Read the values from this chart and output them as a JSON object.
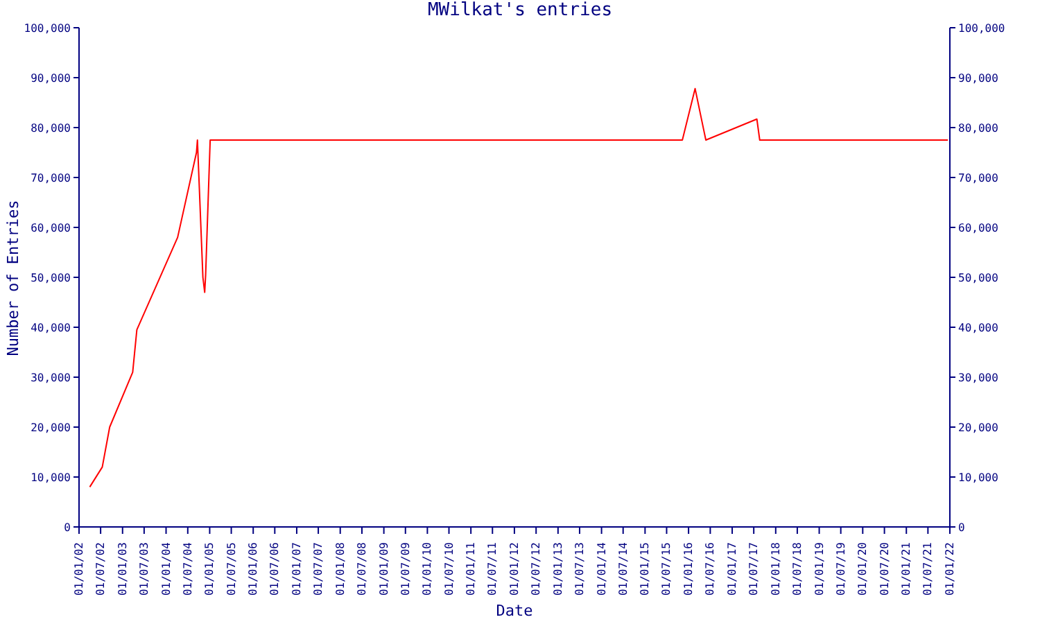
{
  "chart_data": {
    "type": "line",
    "title": "MWilkat's entries",
    "xlabel": "Date",
    "ylabel": "Number of Entries",
    "x": [
      "2002-04-01",
      "2002-07-15",
      "2002-09-15",
      "2003-03-27",
      "2003-05-01",
      "2004-04-07",
      "2004-09-12",
      "2004-09-20",
      "2004-11-05",
      "2004-11-20",
      "2004-11-28",
      "2005-01-05",
      "2015-11-10",
      "2016-02-25",
      "2016-05-25",
      "2017-07-27",
      "2017-08-20",
      "2021-12-15"
    ],
    "series": [
      {
        "color": "#ff0000",
        "values": [
          8000,
          12000,
          20000,
          31000,
          39500,
          58000,
          75000,
          77500,
          50000,
          47000,
          50500,
          77500,
          77500,
          87800,
          77500,
          81700,
          77500,
          77500
        ]
      }
    ],
    "xlim": [
      "2002-01-01",
      "2022-01-01"
    ],
    "xticks": [
      {
        "value": "2002-01-01",
        "label": "01/01/02"
      },
      {
        "value": "2002-07-01",
        "label": "01/07/02"
      },
      {
        "value": "2003-01-01",
        "label": "01/01/03"
      },
      {
        "value": "2003-07-01",
        "label": "01/07/03"
      },
      {
        "value": "2004-01-01",
        "label": "01/01/04"
      },
      {
        "value": "2004-07-01",
        "label": "01/07/04"
      },
      {
        "value": "2005-01-01",
        "label": "01/01/05"
      },
      {
        "value": "2005-07-01",
        "label": "01/07/05"
      },
      {
        "value": "2006-01-01",
        "label": "01/01/06"
      },
      {
        "value": "2006-07-01",
        "label": "01/07/06"
      },
      {
        "value": "2007-01-01",
        "label": "01/01/07"
      },
      {
        "value": "2007-07-01",
        "label": "01/07/07"
      },
      {
        "value": "2008-01-01",
        "label": "01/01/08"
      },
      {
        "value": "2008-07-01",
        "label": "01/07/08"
      },
      {
        "value": "2009-01-01",
        "label": "01/01/09"
      },
      {
        "value": "2009-07-01",
        "label": "01/07/09"
      },
      {
        "value": "2010-01-01",
        "label": "01/01/10"
      },
      {
        "value": "2010-07-01",
        "label": "01/07/10"
      },
      {
        "value": "2011-01-01",
        "label": "01/01/11"
      },
      {
        "value": "2011-07-01",
        "label": "01/07/11"
      },
      {
        "value": "2012-01-01",
        "label": "01/01/12"
      },
      {
        "value": "2012-07-01",
        "label": "01/07/12"
      },
      {
        "value": "2013-01-01",
        "label": "01/01/13"
      },
      {
        "value": "2013-07-01",
        "label": "01/07/13"
      },
      {
        "value": "2014-01-01",
        "label": "01/01/14"
      },
      {
        "value": "2014-07-01",
        "label": "01/07/14"
      },
      {
        "value": "2015-01-01",
        "label": "01/01/15"
      },
      {
        "value": "2015-07-01",
        "label": "01/07/15"
      },
      {
        "value": "2016-01-01",
        "label": "01/01/16"
      },
      {
        "value": "2016-07-01",
        "label": "01/07/16"
      },
      {
        "value": "2017-01-01",
        "label": "01/01/17"
      },
      {
        "value": "2017-07-01",
        "label": "01/07/17"
      },
      {
        "value": "2018-01-01",
        "label": "01/01/18"
      },
      {
        "value": "2018-07-01",
        "label": "01/07/18"
      },
      {
        "value": "2019-01-01",
        "label": "01/01/19"
      },
      {
        "value": "2019-07-01",
        "label": "01/07/19"
      },
      {
        "value": "2020-01-01",
        "label": "01/01/20"
      },
      {
        "value": "2020-07-01",
        "label": "01/07/20"
      },
      {
        "value": "2021-01-01",
        "label": "01/01/21"
      },
      {
        "value": "2021-07-01",
        "label": "01/07/21"
      },
      {
        "value": "2022-01-01",
        "label": "01/01/22"
      }
    ],
    "ylim": [
      0,
      100000
    ],
    "yticks": [
      {
        "value": 0,
        "label": "0"
      },
      {
        "value": 10000,
        "label": "10,000"
      },
      {
        "value": 20000,
        "label": "20,000"
      },
      {
        "value": 30000,
        "label": "30,000"
      },
      {
        "value": 40000,
        "label": "40,000"
      },
      {
        "value": 50000,
        "label": "50,000"
      },
      {
        "value": 60000,
        "label": "60,000"
      },
      {
        "value": 70000,
        "label": "70,000"
      },
      {
        "value": 80000,
        "label": "80,000"
      },
      {
        "value": 90000,
        "label": "90,000"
      },
      {
        "value": 100000,
        "label": "100,000"
      }
    ],
    "y2lim": [
      0,
      100000
    ],
    "y2ticks": [
      {
        "value": 0,
        "label": "0"
      },
      {
        "value": 10000,
        "label": "10,000"
      },
      {
        "value": 20000,
        "label": "20,000"
      },
      {
        "value": 30000,
        "label": "30,000"
      },
      {
        "value": 40000,
        "label": "40,000"
      },
      {
        "value": 50000,
        "label": "50,000"
      },
      {
        "value": 60000,
        "label": "60,000"
      },
      {
        "value": 70000,
        "label": "70,000"
      },
      {
        "value": 80000,
        "label": "80,000"
      },
      {
        "value": 90000,
        "label": "90,000"
      },
      {
        "value": 100000,
        "label": "100,000"
      }
    ],
    "grid": false,
    "legend": false,
    "marker": "none",
    "line_style": "solid"
  }
}
